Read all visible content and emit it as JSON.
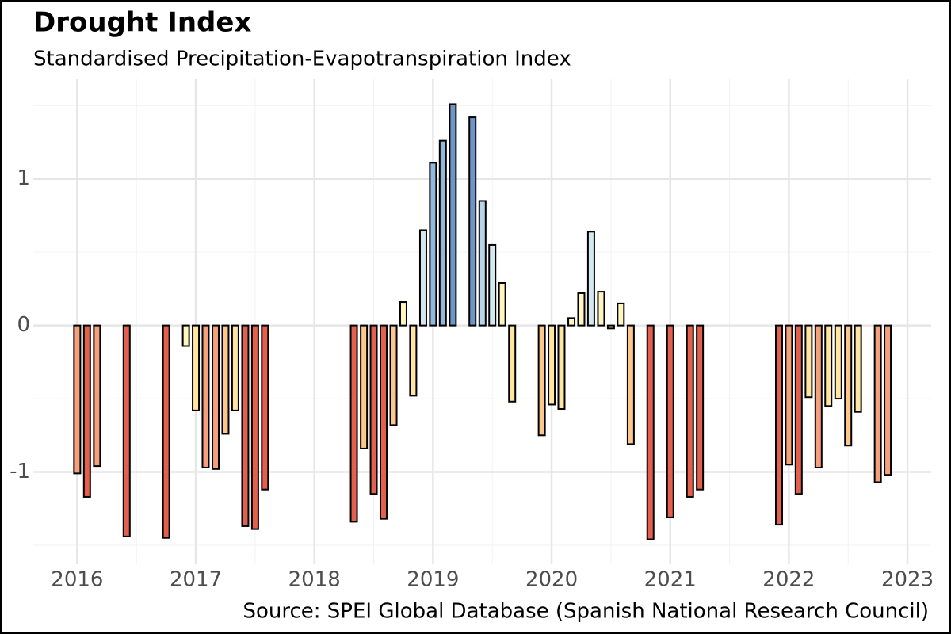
{
  "chart_data": {
    "type": "bar",
    "title": "Drought Index",
    "subtitle": "Standardised Precipitation-Evapotranspiration Index",
    "caption": "Source: SPEI Global Database (Spanish National Research Council)",
    "x": [
      2016,
      2016.083,
      2016.167,
      2016.417,
      2016.75,
      2016.917,
      2017,
      2017.083,
      2017.167,
      2017.25,
      2017.333,
      2017.417,
      2017.5,
      2017.583,
      2018.333,
      2018.417,
      2018.5,
      2018.583,
      2018.667,
      2018.75,
      2018.833,
      2018.917,
      2019,
      2019.083,
      2019.167,
      2019.333,
      2019.417,
      2019.5,
      2019.583,
      2019.667,
      2019.917,
      2020,
      2020.083,
      2020.167,
      2020.25,
      2020.333,
      2020.417,
      2020.5,
      2020.583,
      2020.667,
      2020.833,
      2021,
      2021.167,
      2021.25,
      2021.917,
      2022,
      2022.083,
      2022.167,
      2022.25,
      2022.333,
      2022.417,
      2022.5,
      2022.583,
      2022.75,
      2022.833
    ],
    "values": [
      -1.01,
      -1.17,
      -0.96,
      -1.44,
      -1.45,
      -0.14,
      -0.58,
      -0.97,
      -0.98,
      -0.74,
      -0.58,
      -1.37,
      -1.39,
      -1.12,
      -1.34,
      -0.84,
      -1.15,
      -1.32,
      -0.68,
      0.16,
      -0.48,
      0.65,
      1.11,
      1.26,
      1.51,
      1.42,
      0.85,
      0.55,
      0.29,
      -0.52,
      -0.75,
      -0.54,
      -0.57,
      0.05,
      0.22,
      0.64,
      0.23,
      -0.02,
      0.15,
      -0.81,
      -1.46,
      -1.31,
      -1.17,
      -1.12,
      -1.36,
      -0.95,
      -1.15,
      -0.49,
      -0.97,
      -0.55,
      -0.5,
      -0.82,
      -0.59,
      -1.07,
      -1.02
    ],
    "colors": [
      "#f4a07a",
      "#e3604f",
      "#f4a07a",
      "#e3604f",
      "#e3604f",
      "#fff5c0",
      "#fee6a0",
      "#f4a07a",
      "#f4a07a",
      "#fcc78c",
      "#fee6a0",
      "#e3604f",
      "#e3604f",
      "#e3604f",
      "#e3604f",
      "#fcc78c",
      "#e3604f",
      "#e3604f",
      "#fcc78c",
      "#fff5c0",
      "#fee6a0",
      "#d5e8f0",
      "#92b8db",
      "#92b8db",
      "#6f95c6",
      "#6f95c6",
      "#b7d4e8",
      "#d5e8f0",
      "#fff5c0",
      "#fee6a0",
      "#fcc78c",
      "#fee6a0",
      "#fee6a0",
      "#fff5c0",
      "#fff5c0",
      "#d5e8f0",
      "#fff5c0",
      "#fff5c0",
      "#fff5c0",
      "#fcc78c",
      "#e3604f",
      "#e3604f",
      "#e3604f",
      "#e3604f",
      "#e3604f",
      "#f4a07a",
      "#e3604f",
      "#fee6a0",
      "#f4a07a",
      "#fee6a0",
      "#fee6a0",
      "#fcc78c",
      "#fee6a0",
      "#f4a07a",
      "#f4a07a"
    ],
    "xlim": [
      2015.63,
      2023.2
    ],
    "xticks": [
      2016,
      2017,
      2018,
      2019,
      2020,
      2021,
      2022,
      2023
    ],
    "ylim": [
      -1.63,
      1.68
    ],
    "yticks": [
      -1,
      0,
      1
    ],
    "grid": true
  }
}
